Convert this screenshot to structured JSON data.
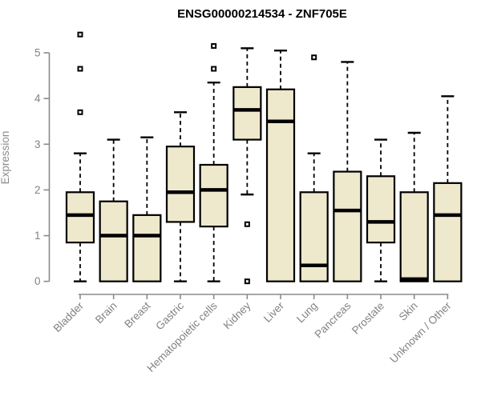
{
  "chart_data": {
    "type": "boxplot",
    "title": "ENSG00000214534 - ZNF705E",
    "ylabel": "Expression",
    "xlabel": "",
    "ylim": [
      0,
      5.45
    ],
    "yticks": [
      0,
      1,
      2,
      3,
      4,
      5
    ],
    "grid": false,
    "legend": false,
    "x_label_rotation_deg": 45,
    "categories": [
      "Bladder",
      "Brain",
      "Breast",
      "Gastric",
      "Hematopoietic cells",
      "Kidney",
      "Liver",
      "Lung",
      "Pancreas",
      "Prostate",
      "Skin",
      "Unknown / Other"
    ],
    "series": [
      {
        "category": "Bladder",
        "low": 0,
        "q1": 0.85,
        "median": 1.45,
        "q3": 1.95,
        "high": 2.8,
        "outliers": [
          3.7,
          4.65,
          5.4
        ]
      },
      {
        "category": "Brain",
        "low": 0,
        "q1": 0,
        "median": 1.0,
        "q3": 1.75,
        "high": 3.1,
        "outliers": []
      },
      {
        "category": "Breast",
        "low": 0,
        "q1": 0,
        "median": 1.0,
        "q3": 1.45,
        "high": 3.15,
        "outliers": []
      },
      {
        "category": "Gastric",
        "low": 0,
        "q1": 1.3,
        "median": 1.95,
        "q3": 2.95,
        "high": 3.7,
        "outliers": []
      },
      {
        "category": "Hematopoietic cells",
        "low": 0,
        "q1": 1.2,
        "median": 2.0,
        "q3": 2.55,
        "high": 4.35,
        "outliers": [
          4.65,
          5.15
        ]
      },
      {
        "category": "Kidney",
        "low": 1.9,
        "q1": 3.1,
        "median": 3.75,
        "q3": 4.25,
        "high": 5.1,
        "outliers": [
          1.25,
          0
        ]
      },
      {
        "category": "Liver",
        "low": 0,
        "q1": 0,
        "median": 3.5,
        "q3": 4.2,
        "high": 5.05,
        "outliers": []
      },
      {
        "category": "Lung",
        "low": 0,
        "q1": 0,
        "median": 0.35,
        "q3": 1.95,
        "high": 2.8,
        "outliers": [
          4.9
        ]
      },
      {
        "category": "Pancreas",
        "low": 0,
        "q1": 0,
        "median": 1.55,
        "q3": 2.4,
        "high": 4.8,
        "outliers": []
      },
      {
        "category": "Prostate",
        "low": 0,
        "q1": 0.85,
        "median": 1.3,
        "q3": 2.3,
        "high": 3.1,
        "outliers": []
      },
      {
        "category": "Skin",
        "low": 0,
        "q1": 0,
        "median": 0.05,
        "q3": 1.95,
        "high": 3.25,
        "outliers": []
      },
      {
        "category": "Unknown / Other",
        "low": 0,
        "q1": 0,
        "median": 1.45,
        "q3": 2.15,
        "high": 4.05,
        "outliers": []
      }
    ],
    "colors": {
      "box_fill": "#EEE8CD",
      "box_border": "#000000",
      "median": "#000000",
      "whisker": "#000000",
      "outlier": "#000000",
      "axis": "#8a8a8a",
      "tick_label": "#828282",
      "title": "#000000",
      "background": "#ffffff"
    }
  }
}
